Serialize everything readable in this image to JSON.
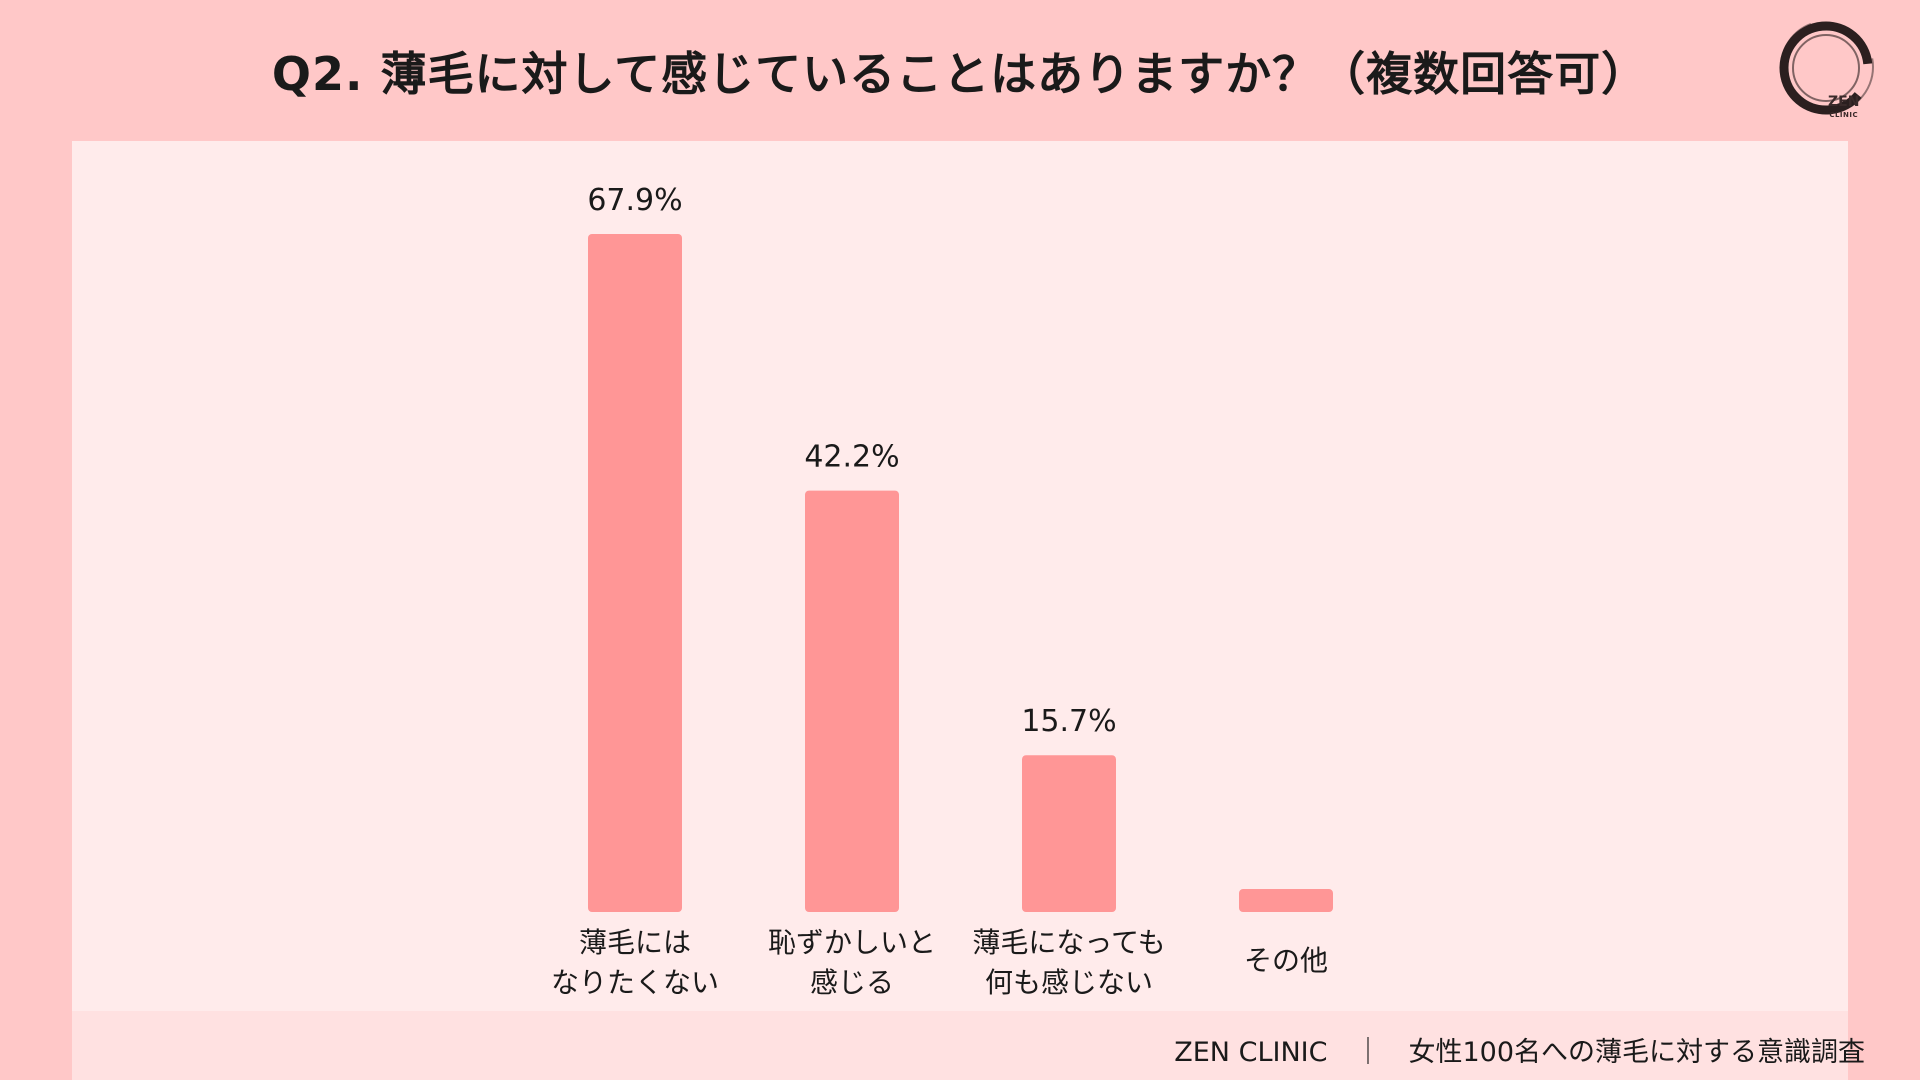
{
  "title": "Q2. 薄毛に対して感じていることはありますか？（複数回答可）",
  "logo": {
    "name": "ZEN",
    "sub": "CLINIC"
  },
  "footer": "ZEN CLINIC　｜　女性100名への薄毛に対する意識調査",
  "colors": {
    "background": "#ffc8c8",
    "panel": "#ffebeb",
    "bar": "#ff9696"
  },
  "chart_data": {
    "type": "bar",
    "title": "Q2. 薄毛に対して感じていることはありますか？（複数回答可）",
    "categories": [
      [
        "薄毛には",
        "なりたくない"
      ],
      [
        "恥ずかしいと",
        "感じる"
      ],
      [
        "薄毛になっても",
        "何も感じない"
      ],
      [
        "その他"
      ]
    ],
    "values": [
      67.9,
      42.2,
      15.7,
      2.3
    ],
    "value_labels": [
      "67.9%",
      "42.2%",
      "15.7%",
      ""
    ],
    "xlabel": "",
    "ylabel": "",
    "ylim": [
      0,
      67.9
    ],
    "grid": false,
    "legend": "none"
  }
}
